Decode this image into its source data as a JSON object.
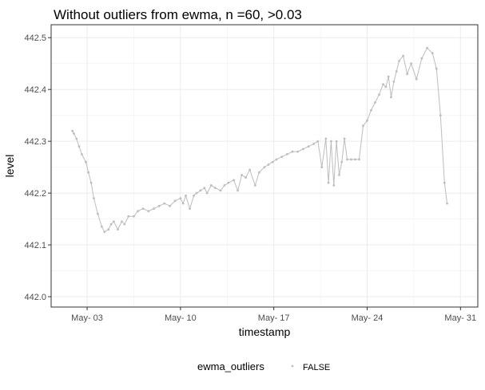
{
  "chart_data": {
    "type": "line",
    "title": "Without outliers from ewma, n =60, >0.03",
    "xlabel": "timestamp",
    "ylabel": "level",
    "x_ticks": [
      "May- 03",
      "May- 10",
      "May- 17",
      "May- 24",
      "May- 31"
    ],
    "x_tick_days": [
      3,
      10,
      17,
      24,
      31
    ],
    "x_range_days": [
      0.3,
      32.3
    ],
    "y_ticks": [
      "442.0",
      "442.1",
      "442.2",
      "442.3",
      "442.4",
      "442.5"
    ],
    "ylim": [
      441.98,
      442.525
    ],
    "grid": true,
    "legend": {
      "title": "ewma_outliers",
      "entries": [
        "FALSE"
      ],
      "position": "bottom"
    },
    "series": [
      {
        "color": "#bdbdbd",
        "x_day": [
          1.9,
          2.0,
          2.2,
          2.4,
          2.6,
          2.9,
          3.1,
          3.3,
          3.5,
          3.8,
          4.1,
          4.3,
          4.6,
          4.8,
          5.0,
          5.3,
          5.6,
          5.8,
          6.1,
          6.5,
          6.8,
          7.2,
          7.6,
          8.0,
          8.4,
          8.8,
          9.2,
          9.6,
          10.0,
          10.2,
          10.4,
          10.7,
          11.0,
          11.2,
          11.5,
          11.8,
          12.0,
          12.3,
          12.6,
          13.0,
          13.3,
          13.6,
          14.0,
          14.3,
          14.6,
          14.9,
          15.2,
          15.6,
          15.9,
          16.3,
          16.6,
          16.9,
          17.2,
          17.6,
          18.0,
          18.4,
          18.8,
          19.2,
          19.6,
          20.0,
          20.3,
          20.6,
          20.9,
          21.1,
          21.3,
          21.5,
          21.7,
          21.9,
          22.1,
          22.3,
          22.5,
          22.8,
          23.1,
          23.4,
          23.7,
          24.0,
          24.3,
          24.6,
          24.9,
          25.2,
          25.4,
          25.6,
          25.8,
          26.0,
          26.2,
          26.4,
          26.7,
          27.0,
          27.3,
          27.7,
          28.1,
          28.5,
          28.9,
          29.2,
          29.5,
          29.8,
          30.0
        ],
        "level": [
          442.32,
          442.315,
          442.305,
          442.29,
          442.275,
          442.26,
          442.24,
          442.22,
          442.19,
          442.16,
          442.135,
          442.125,
          442.13,
          442.14,
          442.145,
          442.13,
          442.145,
          442.14,
          442.155,
          442.155,
          442.165,
          442.17,
          442.165,
          442.17,
          442.175,
          442.18,
          442.175,
          442.185,
          442.19,
          442.18,
          442.195,
          442.17,
          442.195,
          442.2,
          442.205,
          442.21,
          442.2,
          442.215,
          442.21,
          442.205,
          442.215,
          442.22,
          442.225,
          442.205,
          442.235,
          442.23,
          442.245,
          442.215,
          442.24,
          442.25,
          442.255,
          442.26,
          442.265,
          442.27,
          442.275,
          442.28,
          442.28,
          442.285,
          442.29,
          442.295,
          442.3,
          442.25,
          442.305,
          442.22,
          442.3,
          442.215,
          442.3,
          442.235,
          442.26,
          442.305,
          442.265,
          442.265,
          442.265,
          442.265,
          442.33,
          442.34,
          442.36,
          442.375,
          442.39,
          442.41,
          442.405,
          442.425,
          442.385,
          442.415,
          442.435,
          442.455,
          442.465,
          442.43,
          442.45,
          442.42,
          442.46,
          442.48,
          442.47,
          442.44,
          442.35,
          442.22,
          442.18
        ]
      }
    ]
  }
}
